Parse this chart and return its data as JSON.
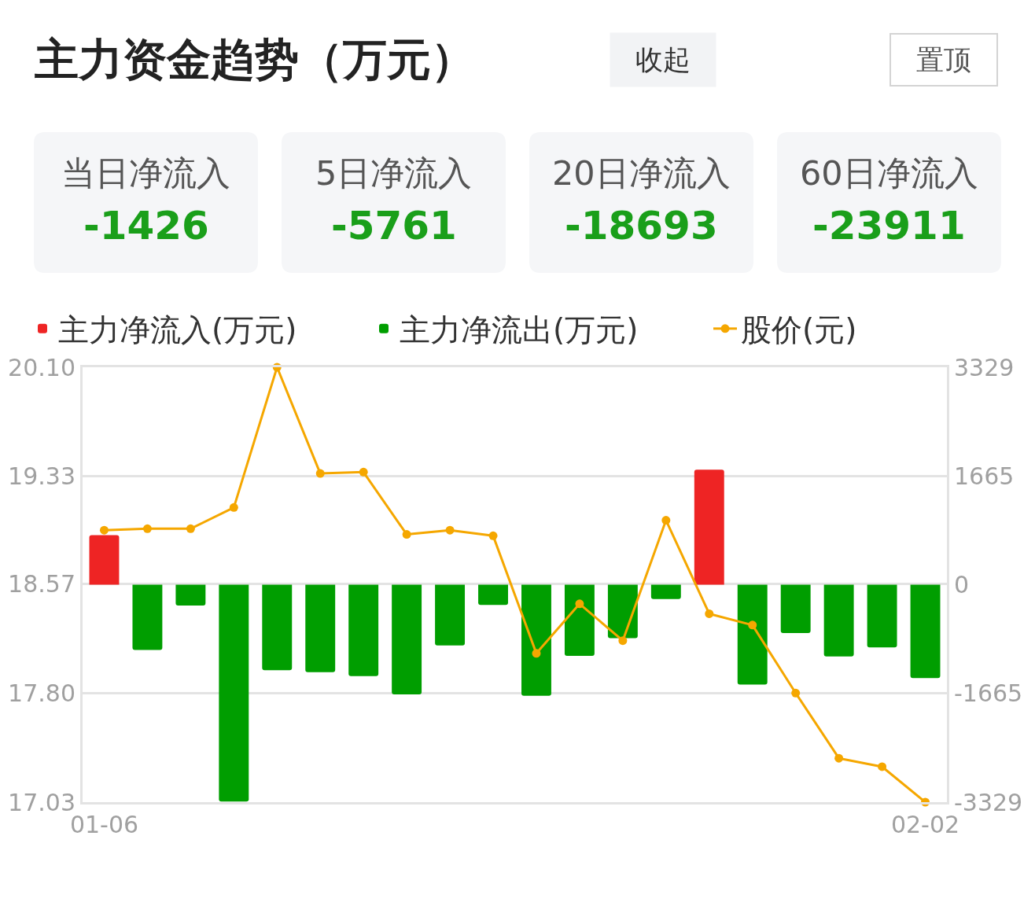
{
  "chart_data": [
    {
      "type": "other",
      "title": "主力资金趋势（万元）",
      "categories": [
        "当日净流入",
        "5日净流入",
        "20日净流入",
        "60日净流入"
      ],
      "values": [
        -1426,
        -5761,
        -18693,
        -23911
      ],
      "data_labels": true,
      "annotations": [
        "收起",
        "置顶"
      ]
    },
    {
      "type": "bar",
      "categories": [
        "01-06",
        null,
        null,
        null,
        null,
        null,
        null,
        null,
        null,
        null,
        null,
        null,
        null,
        null,
        null,
        null,
        null,
        null,
        null,
        "02-02"
      ],
      "series": [
        {
          "name": "主力净流入(万元)",
          "color": "#ee2424",
          "axis": "y2",
          "values": [
            760,
            null,
            null,
            null,
            null,
            null,
            null,
            null,
            null,
            null,
            null,
            null,
            null,
            null,
            1760,
            null,
            null,
            null,
            null,
            null
          ]
        },
        {
          "name": "主力净流出(万元)",
          "color": "#009e00",
          "axis": "y2",
          "values": [
            null,
            -1000,
            -320,
            -3320,
            -1310,
            -1340,
            -1400,
            -1680,
            -930,
            -310,
            -1700,
            -1090,
            -820,
            -220,
            null,
            -1530,
            -740,
            -1100,
            -960,
            -1430
          ]
        },
        {
          "name": "股价(元)",
          "type": "line",
          "axis": "y",
          "color": "#f5a700",
          "marker": "circle",
          "line_style": "solid",
          "values": [
            18.95,
            18.96,
            18.96,
            19.11,
            20.1,
            19.35,
            19.36,
            18.92,
            18.95,
            18.91,
            18.08,
            18.43,
            18.17,
            19.02,
            18.36,
            18.28,
            17.8,
            17.34,
            17.28,
            17.03
          ]
        }
      ],
      "ylim": [
        17.03,
        20.1
      ],
      "yticks": [
        17.03,
        {
          "value": 17.8,
          "label": "17.80"
        },
        18.57,
        19.33,
        {
          "value": 20.1,
          "label": "20.10"
        }
      ],
      "y2lim": [
        -3329,
        3329
      ],
      "y2ticks": [
        -3329,
        -1665,
        0,
        1665,
        3329
      ],
      "grid": "y",
      "legend": "top left"
    }
  ]
}
